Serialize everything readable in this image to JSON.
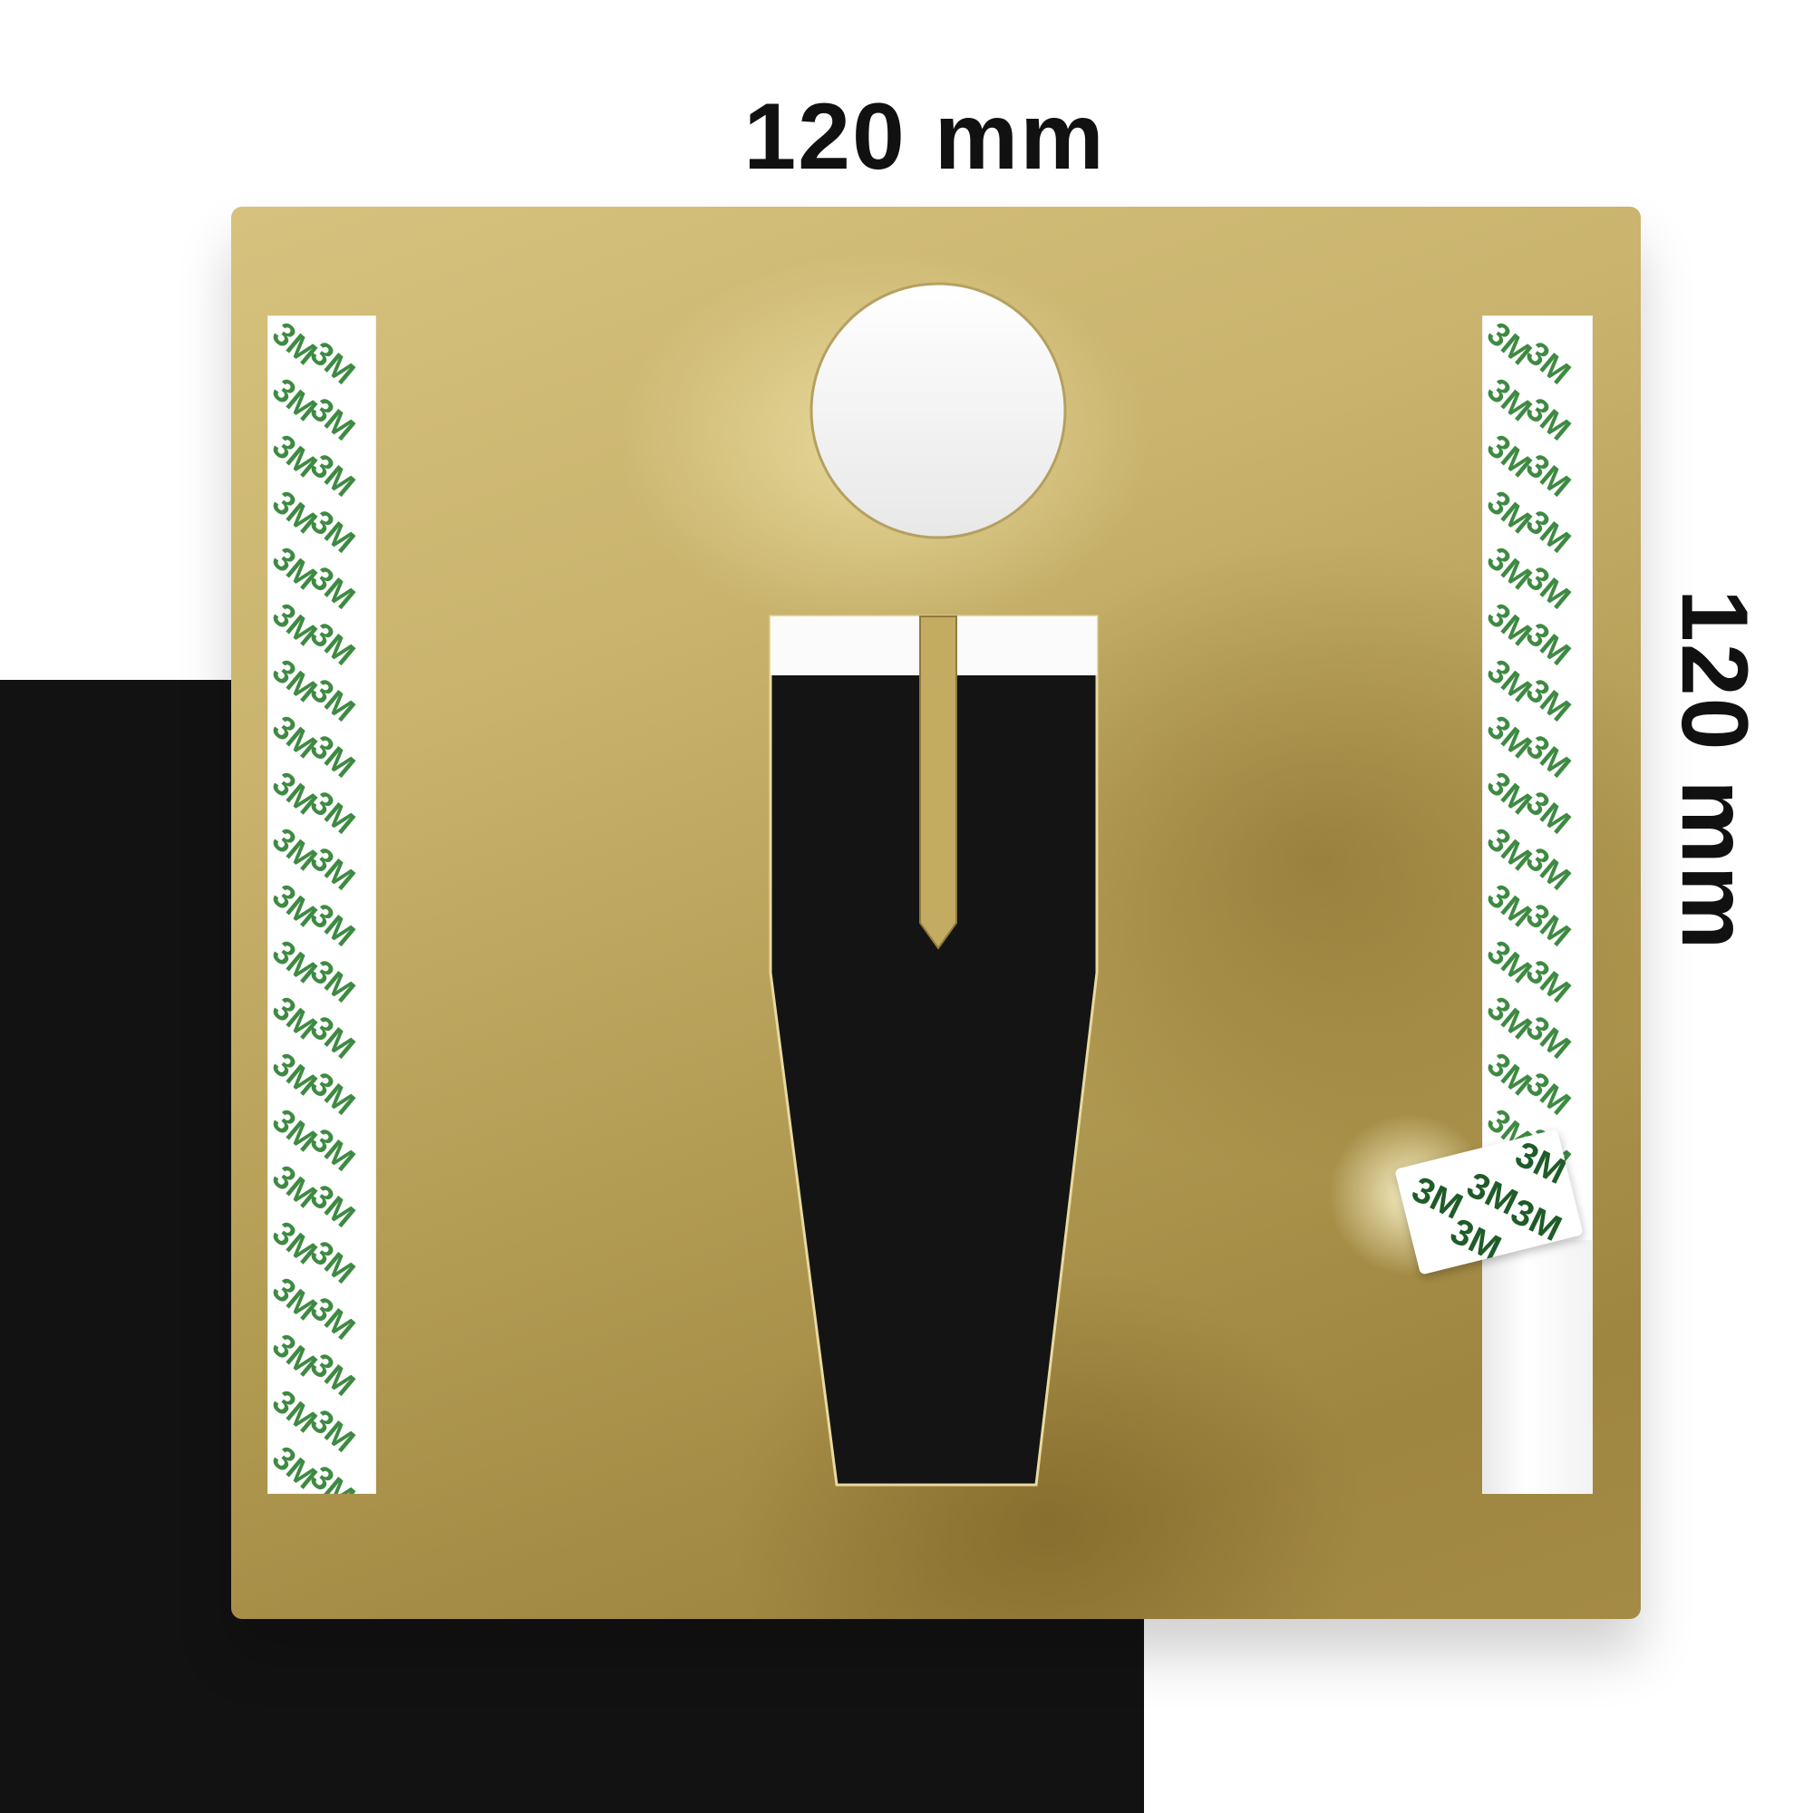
{
  "dimensions": {
    "width_label": "120 mm",
    "height_label": "120 mm"
  },
  "tape": {
    "logo_text": "3M",
    "logo_color": "#3f8a43"
  },
  "plate": {
    "color": "#c9b36d",
    "icon": "male-restroom-pictogram"
  },
  "background": {
    "dark_color": "#121212",
    "light_color": "#ffffff"
  }
}
